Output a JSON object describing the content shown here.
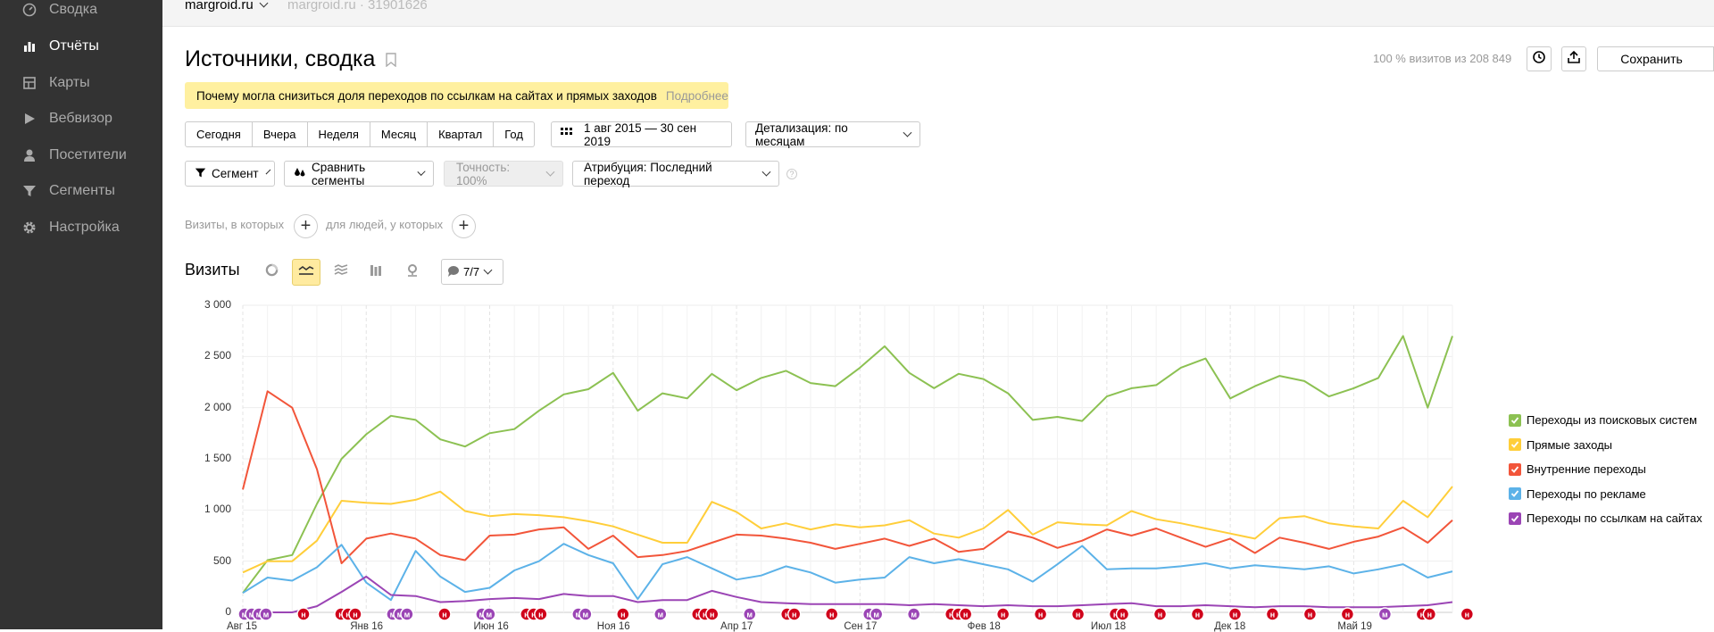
{
  "sidebar": {
    "items": [
      {
        "label": "Сводка",
        "icon": "dashboard-icon",
        "active": false
      },
      {
        "label": "Отчёты",
        "icon": "reports-icon",
        "active": true
      },
      {
        "label": "Карты",
        "icon": "maps-icon",
        "active": false
      },
      {
        "label": "Вебвизор",
        "icon": "play-icon",
        "active": false
      },
      {
        "label": "Посетители",
        "icon": "user-icon",
        "active": false
      },
      {
        "label": "Сегменты",
        "icon": "funnel-icon",
        "active": false
      },
      {
        "label": "Настройка",
        "icon": "gear-icon",
        "active": false
      }
    ]
  },
  "topbar": {
    "counter": "margroid.ru",
    "counter_meta": "margroid.ru · 31901626"
  },
  "header": {
    "title": "Источники, сводка",
    "visits_info": "100 % визитов из 208 849",
    "save_label": "Сохранить"
  },
  "notice": {
    "text": "Почему могла снизиться доля переходов по ссылкам на сайтах и прямых заходов",
    "more": "Подробнее"
  },
  "periods": [
    "Сегодня",
    "Вчера",
    "Неделя",
    "Месяц",
    "Квартал",
    "Год"
  ],
  "date_range": "1 авг 2015 — 30 сен 2019",
  "detail": "Детализация: по месяцам",
  "filters": {
    "segment": "Сегмент",
    "compare": "Сравнить сегменты",
    "accuracy": "Точность: 100%",
    "attribution": "Атрибуция: Последний переход",
    "visits_where": "Визиты, в которых",
    "people_where": "для людей, у которых"
  },
  "visits": {
    "title": "Визиты",
    "segments_count": "7/7"
  },
  "colors": {
    "search": "#8cc152",
    "direct": "#ffce3a",
    "internal": "#f2553a",
    "ads": "#5cb2e8",
    "links": "#9b45b5",
    "sidebar_bg": "#333333",
    "notice_bg": "#fff0a0"
  },
  "chart_data": {
    "type": "line",
    "ylim": [
      0,
      3000
    ],
    "yticks": [
      "3 000",
      "2 500",
      "2 000",
      "1 500",
      "1 000",
      "500",
      "0"
    ],
    "x_tick_labels": [
      "Авг 15",
      "Янв 16",
      "Июн 16",
      "Ноя 16",
      "Апр 17",
      "Сен 17",
      "Фев 18",
      "Июл 18",
      "Дек 18",
      "Май 19"
    ],
    "x": [
      "2015-08",
      "2015-09",
      "2015-10",
      "2015-11",
      "2015-12",
      "2016-01",
      "2016-02",
      "2016-03",
      "2016-04",
      "2016-05",
      "2016-06",
      "2016-07",
      "2016-08",
      "2016-09",
      "2016-10",
      "2016-11",
      "2016-12",
      "2017-01",
      "2017-02",
      "2017-03",
      "2017-04",
      "2017-05",
      "2017-06",
      "2017-07",
      "2017-08",
      "2017-09",
      "2017-10",
      "2017-11",
      "2017-12",
      "2018-01",
      "2018-02",
      "2018-03",
      "2018-04",
      "2018-05",
      "2018-06",
      "2018-07",
      "2018-08",
      "2018-09",
      "2018-10",
      "2018-11",
      "2018-12",
      "2019-01",
      "2019-02",
      "2019-03",
      "2019-04",
      "2019-05",
      "2019-06",
      "2019-07",
      "2019-08",
      "2019-09"
    ],
    "series": [
      {
        "name": "Переходы из поисковых систем",
        "color": "#8cc152",
        "values": [
          190,
          510,
          560,
          1060,
          1500,
          1740,
          1920,
          1880,
          1690,
          1620,
          1750,
          1790,
          1970,
          2130,
          2180,
          2340,
          1970,
          2140,
          2090,
          2330,
          2170,
          2290,
          2360,
          2240,
          2210,
          2390,
          2600,
          2340,
          2190,
          2330,
          2280,
          2140,
          1880,
          1910,
          1870,
          2110,
          2190,
          2220,
          2390,
          2480,
          2090,
          2210,
          2310,
          2260,
          2110,
          2190,
          2290,
          2700,
          2000,
          2700
        ]
      },
      {
        "name": "Прямые заходы",
        "color": "#ffce3a",
        "values": [
          390,
          500,
          500,
          700,
          1090,
          1070,
          1060,
          1100,
          1180,
          990,
          940,
          960,
          950,
          930,
          890,
          840,
          760,
          680,
          680,
          1080,
          980,
          820,
          870,
          810,
          860,
          830,
          850,
          900,
          770,
          730,
          820,
          1000,
          760,
          880,
          860,
          850,
          990,
          910,
          870,
          820,
          770,
          720,
          920,
          940,
          870,
          840,
          820,
          1090,
          930,
          1230
        ]
      },
      {
        "name": "Внутренние переходы",
        "color": "#f2553a",
        "values": [
          1200,
          2160,
          2000,
          1400,
          480,
          720,
          770,
          720,
          560,
          510,
          750,
          760,
          810,
          830,
          620,
          750,
          540,
          560,
          600,
          680,
          760,
          750,
          720,
          680,
          620,
          670,
          720,
          650,
          720,
          590,
          620,
          790,
          730,
          630,
          700,
          810,
          750,
          820,
          730,
          640,
          720,
          580,
          730,
          680,
          620,
          690,
          740,
          830,
          680,
          900
        ]
      },
      {
        "name": "Переходы по рекламе",
        "color": "#5cb2e8",
        "values": [
          190,
          340,
          310,
          440,
          660,
          290,
          120,
          600,
          350,
          200,
          240,
          410,
          500,
          670,
          560,
          480,
          130,
          470,
          540,
          430,
          320,
          360,
          450,
          390,
          290,
          320,
          340,
          540,
          480,
          520,
          470,
          420,
          300,
          470,
          650,
          420,
          430,
          430,
          450,
          480,
          430,
          460,
          440,
          420,
          450,
          380,
          420,
          470,
          340,
          400
        ]
      },
      {
        "name": "Переходы по ссылкам на сайтах",
        "color": "#9b45b5",
        "values": [
          0,
          0,
          0,
          60,
          200,
          350,
          170,
          160,
          100,
          110,
          130,
          140,
          130,
          180,
          160,
          160,
          100,
          120,
          120,
          210,
          150,
          100,
          90,
          80,
          80,
          80,
          80,
          70,
          80,
          70,
          60,
          70,
          60,
          60,
          70,
          80,
          90,
          60,
          60,
          70,
          60,
          50,
          60,
          60,
          50,
          50,
          50,
          60,
          70,
          100
        ]
      }
    ]
  },
  "legend": [
    {
      "label": "Переходы из поисковых систем",
      "color": "#8cc152"
    },
    {
      "label": "Прямые заходы",
      "color": "#ffce3a"
    },
    {
      "label": "Внутренние переходы",
      "color": "#f2553a"
    },
    {
      "label": "Переходы по рекламе",
      "color": "#5cb2e8"
    },
    {
      "label": "Переходы по ссылкам на сайтах",
      "color": "#9b45b5"
    }
  ],
  "markers": [
    {
      "type": "м",
      "color": "#9b45b5",
      "count": 4
    },
    {
      "type": "н",
      "color": "#d0021b",
      "count": 1
    },
    {
      "type": "н",
      "color": "#d0021b",
      "count": 3
    },
    {
      "type": "м",
      "color": "#9b45b5",
      "count": 3
    },
    {
      "type": "н",
      "color": "#d0021b",
      "count": 1
    },
    {
      "type": "м",
      "color": "#9b45b5",
      "count": 2
    },
    {
      "type": "н",
      "color": "#d0021b",
      "count": 3
    },
    {
      "type": "м",
      "color": "#9b45b5",
      "count": 2
    },
    {
      "type": "н",
      "color": "#d0021b",
      "count": 1
    },
    {
      "type": "м",
      "color": "#9b45b5",
      "count": 1
    },
    {
      "type": "н",
      "color": "#d0021b",
      "count": 3
    },
    {
      "type": "м",
      "color": "#9b45b5",
      "count": 1
    },
    {
      "type": "н",
      "color": "#d0021b",
      "count": 2
    },
    {
      "type": "н",
      "color": "#d0021b",
      "count": 1
    },
    {
      "type": "м",
      "color": "#9b45b5",
      "count": 2
    },
    {
      "type": "м",
      "color": "#9b45b5",
      "count": 1
    },
    {
      "type": "н",
      "color": "#d0021b",
      "count": 3
    },
    {
      "type": "н",
      "color": "#d0021b",
      "count": 1
    },
    {
      "type": "н",
      "color": "#d0021b",
      "count": 1
    },
    {
      "type": "н",
      "color": "#d0021b",
      "count": 1
    },
    {
      "type": "н",
      "color": "#d0021b",
      "count": 2
    },
    {
      "type": "н",
      "color": "#d0021b",
      "count": 1
    },
    {
      "type": "н",
      "color": "#d0021b",
      "count": 1
    },
    {
      "type": "н",
      "color": "#d0021b",
      "count": 1
    },
    {
      "type": "н",
      "color": "#d0021b",
      "count": 1
    },
    {
      "type": "н",
      "color": "#d0021b",
      "count": 1
    },
    {
      "type": "н",
      "color": "#d0021b",
      "count": 1
    },
    {
      "type": "м",
      "color": "#9b45b5",
      "count": 1
    },
    {
      "type": "н",
      "color": "#d0021b",
      "count": 2
    },
    {
      "type": "н",
      "color": "#d0021b",
      "count": 1
    }
  ]
}
